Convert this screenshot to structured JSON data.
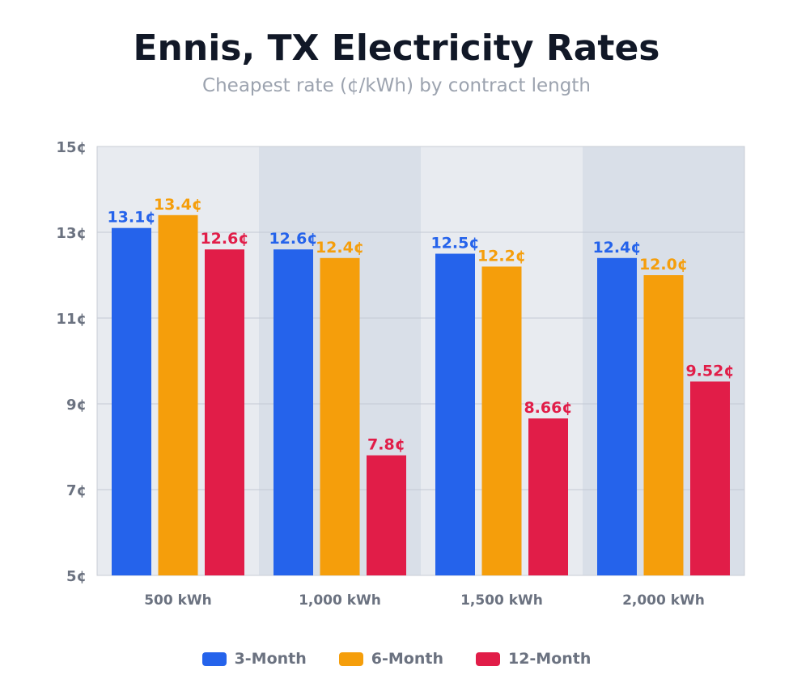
{
  "chart_data": {
    "type": "bar",
    "title": "Ennis, TX Electricity Rates",
    "subtitle": "Cheapest rate (¢/kWh) by contract length",
    "categories": [
      "500 kWh",
      "1,000 kWh",
      "1,500 kWh",
      "2,000 kWh"
    ],
    "series": [
      {
        "name": "3-Month",
        "color": "#2563eb",
        "values": [
          13.1,
          12.6,
          12.5,
          12.4
        ],
        "labels": [
          "13.1¢",
          "12.6¢",
          "12.5¢",
          "12.4¢"
        ]
      },
      {
        "name": "6-Month",
        "color": "#f59e0b",
        "values": [
          13.4,
          12.4,
          12.2,
          12.0
        ],
        "labels": [
          "13.4¢",
          "12.4¢",
          "12.2¢",
          "12.0¢"
        ]
      },
      {
        "name": "12-Month",
        "color": "#e11d48",
        "values": [
          12.6,
          7.8,
          8.66,
          9.52
        ],
        "labels": [
          "12.6¢",
          "7.8¢",
          "8.66¢",
          "9.52¢"
        ]
      }
    ],
    "ylim": [
      5,
      15
    ],
    "yticks": [
      5,
      7,
      9,
      11,
      13,
      15
    ],
    "ytick_labels": [
      "5¢",
      "7¢",
      "9¢",
      "11¢",
      "13¢",
      "15¢"
    ],
    "grid": true,
    "legend_position": "bottom"
  }
}
